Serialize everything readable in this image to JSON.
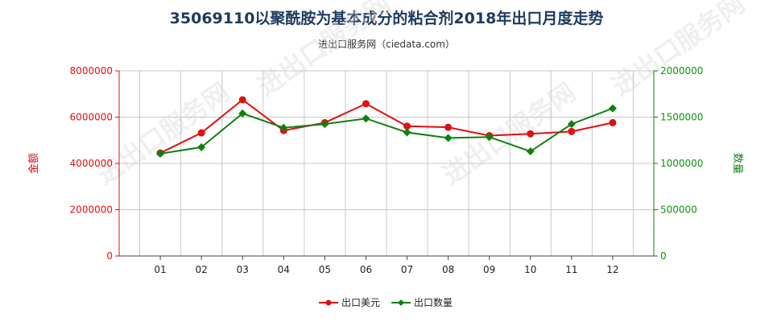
{
  "title": "35069110以聚酰胺为基本成分的粘合剂2018年出口月度走势",
  "subtitle": "进出口服务网（ciedata.com）",
  "watermark": "进出口服务网",
  "colors": {
    "amount": "#e01010",
    "quantity": "#108010",
    "grid": "#c8c8c8",
    "axis": "#444444",
    "title": "#1f3a5f"
  },
  "chart_data": {
    "type": "line",
    "categories": [
      "01",
      "02",
      "03",
      "04",
      "05",
      "06",
      "07",
      "08",
      "09",
      "10",
      "11",
      "12"
    ],
    "series": [
      {
        "name": "出口美元",
        "axis": "left",
        "marker": "circle",
        "values": [
          4450000,
          5320000,
          6750000,
          5420000,
          5760000,
          6580000,
          5610000,
          5560000,
          5200000,
          5280000,
          5380000,
          5760000
        ]
      },
      {
        "name": "出口数量",
        "axis": "right",
        "marker": "diamond",
        "values": [
          1105000,
          1175000,
          1540000,
          1385000,
          1425000,
          1485000,
          1335000,
          1275000,
          1285000,
          1130000,
          1425000,
          1595000
        ]
      }
    ],
    "y_left": {
      "label": "金额",
      "min": 0,
      "max": 8000000,
      "ticks": [
        "0",
        "2000000",
        "4000000",
        "6000000",
        "8000000"
      ]
    },
    "y_right": {
      "label": "数量",
      "min": 0,
      "max": 2000000,
      "ticks": [
        "0",
        "500000",
        "1000000",
        "1500000",
        "2000000"
      ]
    },
    "grid": true,
    "legend_position": "bottom"
  }
}
